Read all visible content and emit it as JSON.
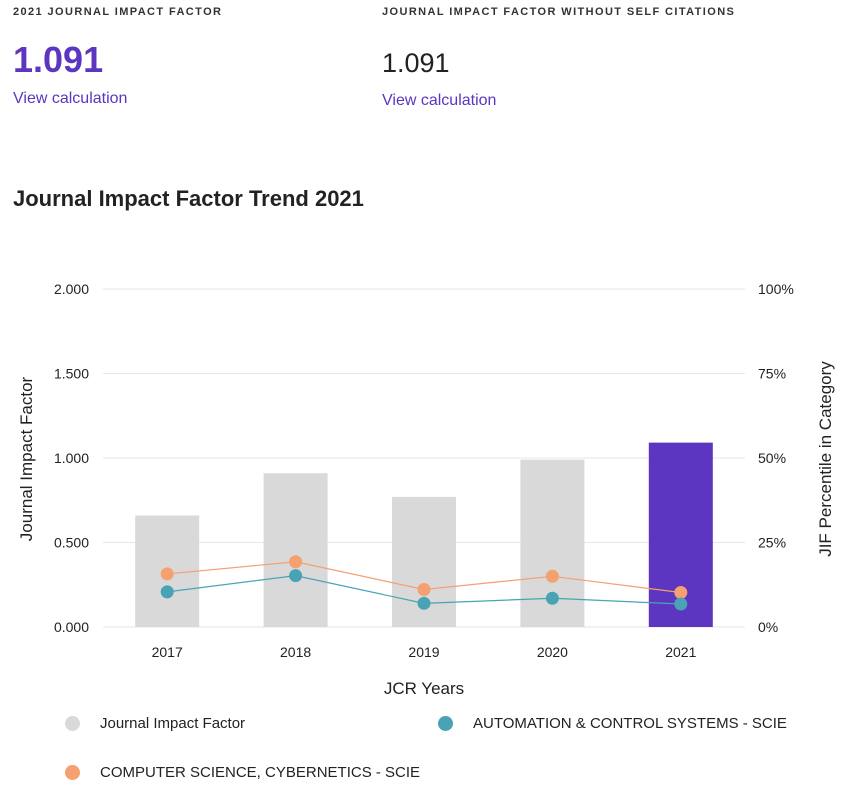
{
  "metrics": {
    "jif": {
      "label": "2021 JOURNAL IMPACT FACTOR",
      "value": "1.091",
      "link": "View calculation"
    },
    "jif_no_self": {
      "label": "JOURNAL IMPACT FACTOR WITHOUT SELF CITATIONS",
      "value": "1.091",
      "link": "View calculation"
    }
  },
  "section_title": "Journal Impact Factor Trend 2021",
  "colors": {
    "accent": "#5c35c0",
    "bar_default": "#d9d9d9",
    "automation": "#4aa3b4",
    "cybernetics": "#f5a06f",
    "grid": "#e6e6e6"
  },
  "legend": {
    "jif": "Journal Impact Factor",
    "automation": "AUTOMATION & CONTROL SYSTEMS - SCIE",
    "cybernetics": "COMPUTER SCIENCE, CYBERNETICS - SCIE"
  },
  "chart_data": {
    "type": "bar",
    "categories": [
      "2017",
      "2018",
      "2019",
      "2020",
      "2021"
    ],
    "xlabel": "JCR Years",
    "ylabel": "Journal Impact Factor",
    "ylabel_right": "JIF Percentile in Category",
    "ylim": [
      0,
      2
    ],
    "ylim_right": [
      0,
      100
    ],
    "yticks": [
      "0.000",
      "0.500",
      "1.000",
      "1.500",
      "2.000"
    ],
    "yticks_right": [
      "0%",
      "25%",
      "50%",
      "75%",
      "100%"
    ],
    "grid": true,
    "highlight_category": "2021",
    "series": [
      {
        "name": "Journal Impact Factor",
        "type": "bar",
        "axis": "left",
        "values": [
          0.66,
          0.91,
          0.77,
          0.99,
          1.091
        ]
      },
      {
        "name": "AUTOMATION & CONTROL SYSTEMS - SCIE",
        "type": "line",
        "axis": "right",
        "values": [
          10.4,
          15.2,
          7.0,
          8.5,
          6.8
        ]
      },
      {
        "name": "COMPUTER SCIENCE, CYBERNETICS - SCIE",
        "type": "line",
        "axis": "right",
        "values": [
          15.7,
          19.3,
          11.1,
          15.0,
          10.2
        ]
      }
    ]
  }
}
